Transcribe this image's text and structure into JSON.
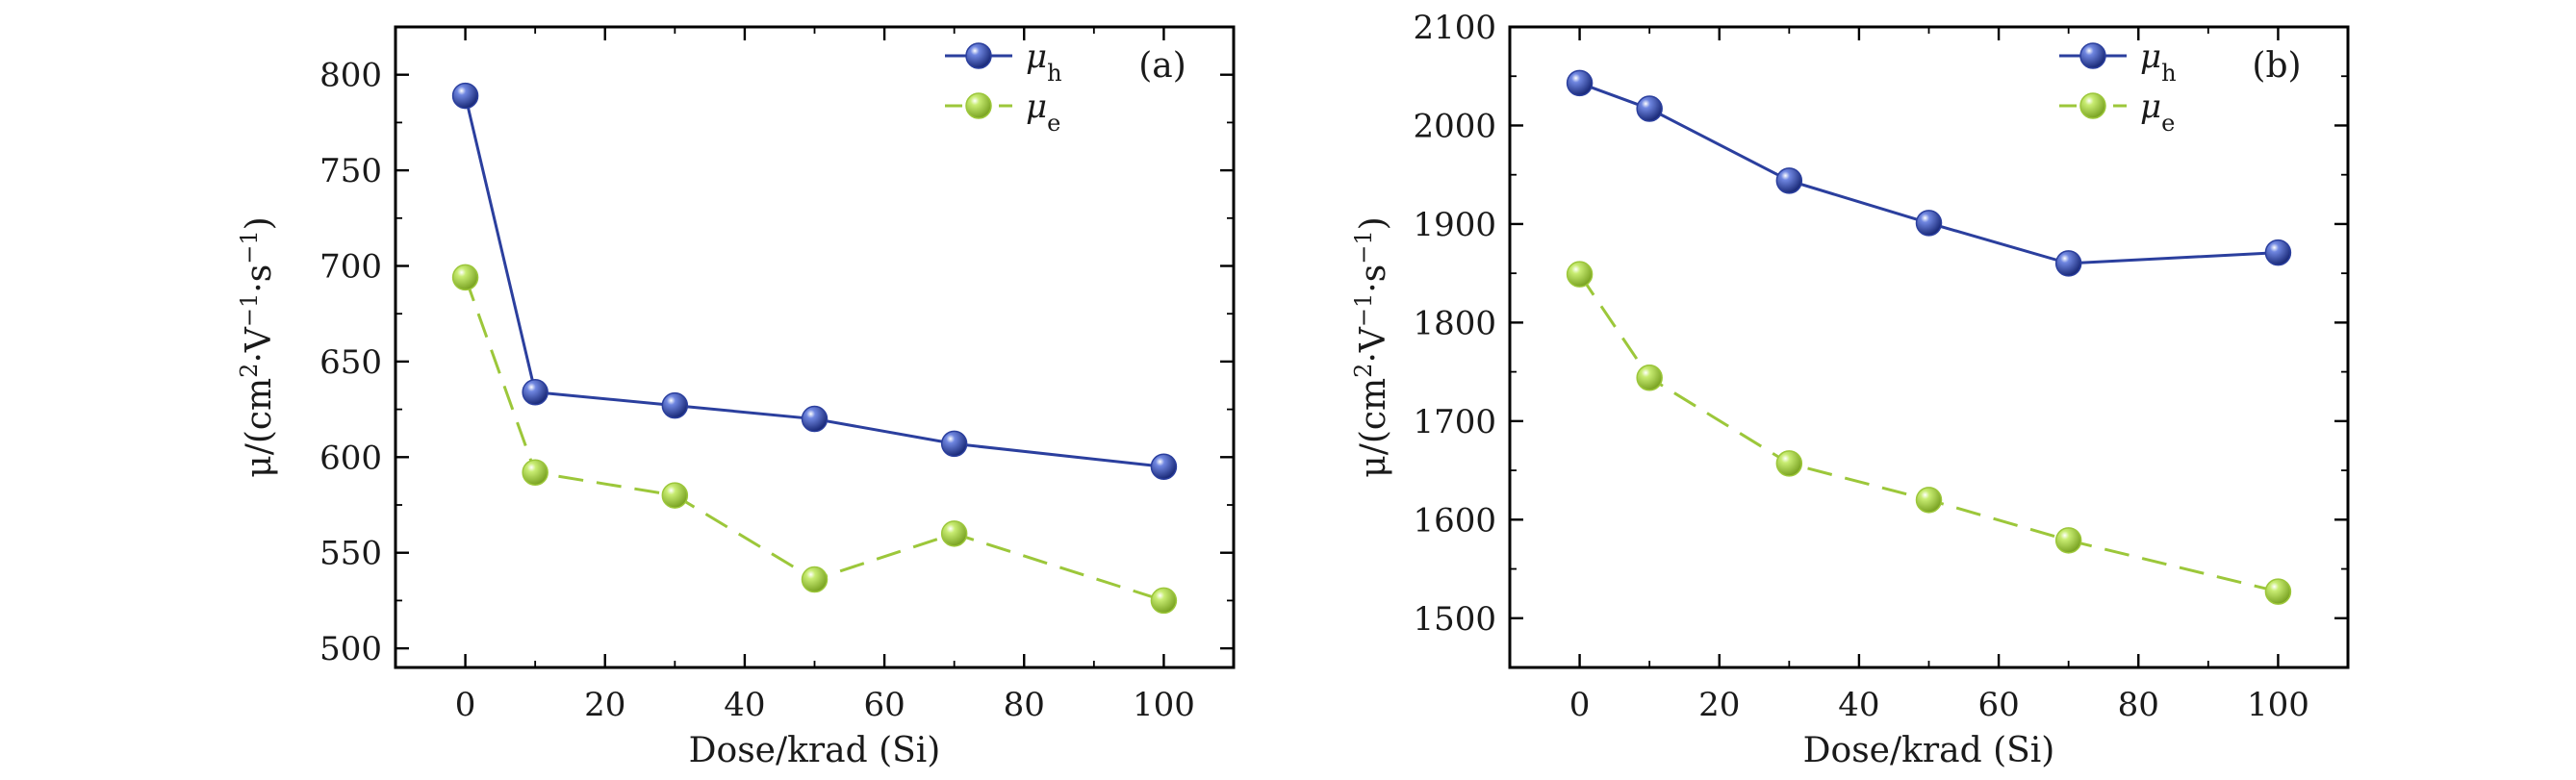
{
  "chart_data": [
    {
      "type": "line",
      "panel_label": "(a)",
      "xlabel": "Dose/krad (Si)",
      "ylabel_prefix": "μ/(cm",
      "ylabel_sup1": "2",
      "ylabel_mid1": "·V",
      "ylabel_sup2": "−1",
      "ylabel_mid2": "·s",
      "ylabel_sup3": "−1",
      "ylabel_suffix": ")",
      "xlim": [
        -10,
        110
      ],
      "ylim": [
        490,
        825
      ],
      "x_ticks": [
        0,
        20,
        40,
        60,
        80,
        100
      ],
      "y_ticks": [
        500,
        550,
        600,
        650,
        700,
        750,
        800
      ],
      "legend_position": "top-right",
      "x": [
        0,
        10,
        30,
        50,
        70,
        100
      ],
      "series": [
        {
          "name": "μh",
          "symbol": "μ",
          "subscript": "h",
          "color": "#2b3f9e",
          "dash": "solid",
          "values": [
            789,
            634,
            627,
            620,
            607,
            595
          ]
        },
        {
          "name": "μe",
          "symbol": "μ",
          "subscript": "e",
          "color": "#9cc73a",
          "dash": "dashed",
          "values": [
            694,
            592,
            580,
            536,
            560,
            525
          ]
        }
      ]
    },
    {
      "type": "line",
      "panel_label": "(b)",
      "xlabel": "Dose/krad (Si)",
      "ylabel_prefix": "μ/(cm",
      "ylabel_sup1": "2",
      "ylabel_mid1": "·V",
      "ylabel_sup2": "−1",
      "ylabel_mid2": "·s",
      "ylabel_sup3": "−1",
      "ylabel_suffix": ")",
      "xlim": [
        -10,
        110
      ],
      "ylim": [
        1450,
        2100
      ],
      "x_ticks": [
        0,
        20,
        40,
        60,
        80,
        100
      ],
      "y_ticks": [
        1500,
        1600,
        1700,
        1800,
        1900,
        2000,
        2100
      ],
      "legend_position": "top-right",
      "x": [
        0,
        10,
        30,
        50,
        70,
        100
      ],
      "series": [
        {
          "name": "μh",
          "symbol": "μ",
          "subscript": "h",
          "color": "#2b3f9e",
          "dash": "solid",
          "values": [
            2043,
            2017,
            1944,
            1901,
            1860,
            1871
          ]
        },
        {
          "name": "μe",
          "symbol": "μ",
          "subscript": "e",
          "color": "#9cc73a",
          "dash": "dashed",
          "values": [
            1849,
            1744,
            1657,
            1620,
            1579,
            1527
          ]
        }
      ]
    }
  ]
}
